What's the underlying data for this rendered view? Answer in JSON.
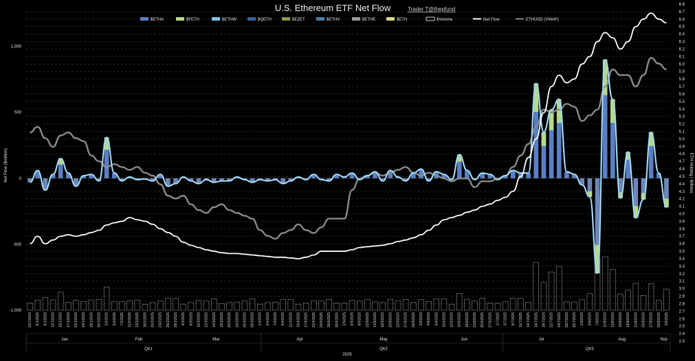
{
  "chart_data": {
    "type": "bar",
    "title": "U.S. Ethereum ETF Net Flow",
    "credit": "Trader T@thepfund",
    "ylabel_left": "Net Flow ($million)",
    "ylabel_right": "ETH Holding | Millions",
    "xlabel": "2025",
    "ylim_left": [
      -1000,
      1300
    ],
    "ylim_right": [
      2.3,
      6.8
    ],
    "left_ticks": [
      {
        "value": 1000,
        "label": "1,000",
        "color": "#e6e6e6"
      },
      {
        "value": 500,
        "label": "500",
        "color": "#e6e6e6"
      },
      {
        "value": 0,
        "label": "0",
        "color": "#e6e6e6"
      },
      {
        "value": -500,
        "label": "-500",
        "color": "#e03030"
      },
      {
        "value": -1000,
        "label": "-1,000",
        "color": "#e03030"
      }
    ],
    "right_ticks": [
      "2.3",
      "2.4",
      "2.5",
      "2.6",
      "2.7",
      "2.8",
      "2.9",
      "3.0",
      "3.1",
      "3.2",
      "3.3",
      "3.4",
      "3.5",
      "3.6",
      "3.7",
      "3.8",
      "3.9",
      "4.0",
      "4.1",
      "4.2",
      "4.3",
      "4.4",
      "4.5",
      "4.6",
      "4.7",
      "4.8",
      "4.9",
      "5.0",
      "5.1",
      "5.2",
      "5.3",
      "5.4",
      "5.5",
      "5.6",
      "5.7",
      "5.8",
      "5.9",
      "6.0",
      "6.1",
      "6.2",
      "6.3",
      "6.4",
      "6.5",
      "6.6",
      "6.7",
      "6.8"
    ],
    "legend": [
      {
        "name": "$ETHA",
        "color": "#5b7fc4",
        "kind": "box"
      },
      {
        "name": "$FETH",
        "color": "#b7d98a",
        "kind": "box"
      },
      {
        "name": "$ETHW",
        "color": "#7ec3e6",
        "kind": "box"
      },
      {
        "name": "$QETH",
        "color": "#3f5f9a",
        "kind": "box"
      },
      {
        "name": "$EZET",
        "color": "#8a9a4a",
        "kind": "box"
      },
      {
        "name": "$ETHV",
        "color": "#4a7fa8",
        "kind": "box"
      },
      {
        "name": "$ETHE",
        "color": "#9a9a9a",
        "kind": "box"
      },
      {
        "name": "$ETH",
        "color": "#d8d87a",
        "kind": "box"
      },
      {
        "name": "$Volume",
        "color": "#ffffff",
        "kind": "outline"
      },
      {
        "name": "Net Flow",
        "color": "#ffffff",
        "kind": "line"
      },
      {
        "name": "ETHUSD (VWAP)",
        "color": "#8a8a8a",
        "kind": "line"
      }
    ],
    "dates": [
      "23/7/2024",
      "6/1/2025",
      "8/1/2025",
      "13/1/2025",
      "15/1/2025",
      "17/1/2025",
      "22/1/2025",
      "24/1/2025",
      "28/1/2025",
      "30/1/2025",
      "3/2/2025",
      "5/2/2025",
      "7/2/2025",
      "11/2/2025",
      "13/2/2025",
      "18/2/2025",
      "20/2/2025",
      "24/2/2025",
      "26/2/2025",
      "28/2/2025",
      "4/3/2025",
      "6/3/2025",
      "10/3/2025",
      "12/3/2025",
      "14/3/2025",
      "18/3/2025",
      "20/3/2025",
      "24/3/2025",
      "26/3/2025",
      "28/3/2025",
      "1/4/2025",
      "3/4/2025",
      "7/4/2025",
      "9/4/2025",
      "11/4/2025",
      "15/4/2025",
      "17/4/2025",
      "22/4/2025",
      "24/4/2025",
      "28/4/2025",
      "30/4/2025",
      "2/5/2025",
      "6/5/2025",
      "8/5/2025",
      "12/5/2025",
      "14/5/2025",
      "16/5/2025",
      "20/5/2025",
      "22/5/2025",
      "27/5/2025",
      "29/5/2025",
      "2/6/2025",
      "4/6/2025",
      "6/6/2025",
      "10/6/2025",
      "12/6/2025",
      "16/6/2025",
      "18/6/2025",
      "23/6/2025",
      "25/6/2025",
      "27/6/2025",
      "1/7/2025",
      "3/7/2025",
      "8/7/2025",
      "10/7/2025",
      "14/7/2025",
      "16/7/2025",
      "18/7/2025",
      "22/7/2025",
      "24/7/2025",
      "28/7/2025",
      "30/7/2025",
      "1/8/2025",
      "5/8/2025",
      "7/8/2025",
      "11/8/2025",
      "13/8/2025",
      "15/8/2025",
      "19/8/2025",
      "21/8/2025",
      "25/8/2025",
      "27/8/2025",
      "29/8/2025",
      "3/9/2025"
    ],
    "months": [
      {
        "label": "Jan",
        "pos": 0.06
      },
      {
        "label": "Feb",
        "pos": 0.175
      },
      {
        "label": "Mar",
        "pos": 0.295
      },
      {
        "label": "Apr",
        "pos": 0.425
      },
      {
        "label": "May",
        "pos": 0.555
      },
      {
        "label": "Jun",
        "pos": 0.68
      },
      {
        "label": "Jul",
        "pos": 0.8
      },
      {
        "label": "Aug",
        "pos": 0.925
      },
      {
        "label": "Sep",
        "pos": 0.99
      }
    ],
    "quarters": [
      {
        "label": "Qtr1",
        "pos": 0.19
      },
      {
        "label": "Qtr2",
        "pos": 0.555
      },
      {
        "label": "Qtr3",
        "pos": 0.875
      }
    ],
    "net_flow": [
      -30,
      60,
      -90,
      30,
      150,
      40,
      -60,
      20,
      30,
      -20,
      310,
      40,
      -20,
      10,
      -10,
      -5,
      -20,
      30,
      -60,
      -40,
      10,
      -20,
      -40,
      -10,
      -30,
      -20,
      -20,
      10,
      -10,
      -30,
      -10,
      -20,
      -10,
      -40,
      -20,
      10,
      -10,
      30,
      -10,
      -20,
      30,
      10,
      40,
      -10,
      20,
      50,
      -20,
      60,
      10,
      -20,
      40,
      70,
      -20,
      50,
      30,
      -10,
      180,
      60,
      -10,
      40,
      30,
      -10,
      20,
      60,
      40,
      40,
      720,
      350,
      520,
      600,
      50,
      30,
      -50,
      -140,
      -720,
      900,
      600,
      -150,
      200,
      -300,
      -160,
      350,
      40,
      -220
    ],
    "eth_holding": [
      3.6,
      3.7,
      3.6,
      3.65,
      3.7,
      3.72,
      3.7,
      3.72,
      3.75,
      3.78,
      3.85,
      3.88,
      3.9,
      3.95,
      3.92,
      3.9,
      3.86,
      3.8,
      3.75,
      3.7,
      3.62,
      3.58,
      3.55,
      3.52,
      3.5,
      3.48,
      3.47,
      3.47,
      3.46,
      3.45,
      3.44,
      3.43,
      3.42,
      3.42,
      3.41,
      3.4,
      3.42,
      3.45,
      3.5,
      3.5,
      3.5,
      3.5,
      3.52,
      3.55,
      3.56,
      3.57,
      3.58,
      3.6,
      3.63,
      3.65,
      3.68,
      3.72,
      3.78,
      3.85,
      3.92,
      3.95,
      3.98,
      4.02,
      4.05,
      4.1,
      4.13,
      4.18,
      4.22,
      4.3,
      4.5,
      4.75,
      5.0,
      5.35,
      5.7,
      5.85,
      5.75,
      5.8,
      6.0,
      6.1,
      6.3,
      6.42,
      6.35,
      6.2,
      6.3,
      6.5,
      6.6,
      6.68,
      6.6,
      6.55
    ],
    "eth_price_vwap": [
      3300,
      3400,
      3200,
      3050,
      3250,
      3300,
      3200,
      3150,
      2900,
      2800,
      2700,
      2750,
      2700,
      2650,
      2700,
      2600,
      2550,
      2400,
      2200,
      2150,
      2200,
      2050,
      1950,
      1900,
      2000,
      2050,
      1950,
      1900,
      1850,
      1800,
      1600,
      1500,
      1450,
      1550,
      1600,
      1700,
      1600,
      1550,
      1650,
      1800,
      1800,
      1800,
      2300,
      2500,
      2550,
      2600,
      2550,
      2600,
      2650,
      2700,
      2600,
      2550,
      2600,
      2550,
      2500,
      2450,
      2500,
      2500,
      2350,
      2450,
      2450,
      2500,
      2550,
      2700,
      2900,
      3100,
      3400,
      3700,
      3650,
      3700,
      3800,
      3750,
      3500,
      3600,
      3700,
      4100,
      4400,
      4300,
      4300,
      4100,
      4300,
      4600,
      4500,
      4400
    ]
  }
}
